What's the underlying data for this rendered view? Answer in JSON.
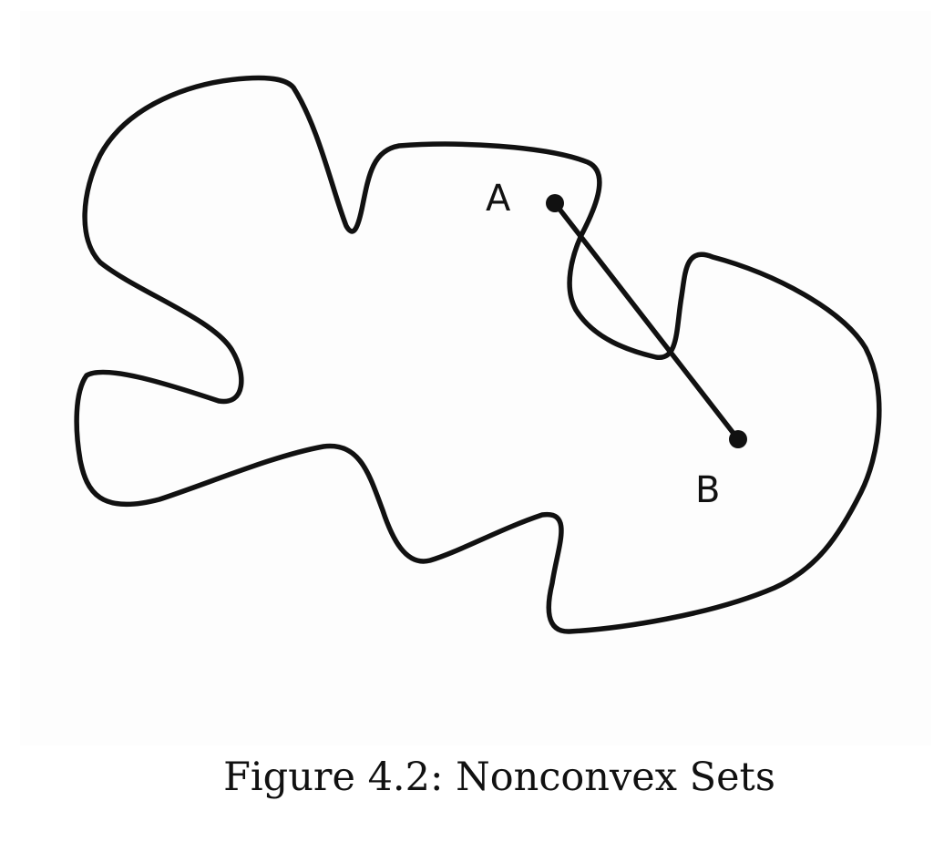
{
  "diagram": {
    "points": [
      {
        "id": "A",
        "label": "A"
      },
      {
        "id": "B",
        "label": "B"
      }
    ],
    "stroke_color": "#111111"
  },
  "caption": "Figure 4.2: Nonconvex Sets"
}
